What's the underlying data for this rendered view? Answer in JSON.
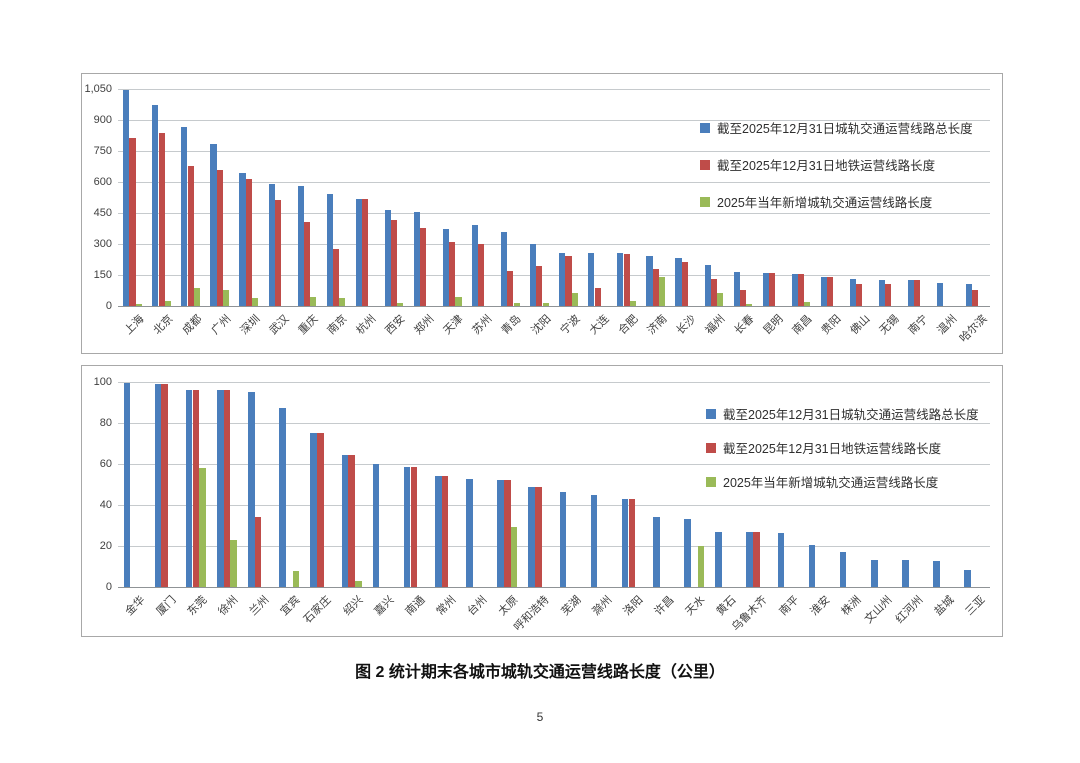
{
  "page": {
    "caption": "图 2 统计期末各城市城轨交通运营线路长度（公里）",
    "page_number": "5"
  },
  "colors": {
    "series_total_blue": "#4A7EBC",
    "series_metro_red": "#BF4C49",
    "series_new_green": "#9ABA58",
    "gridline": "#c6cacd",
    "panel_border": "#a8a8a8"
  },
  "chart_data": [
    {
      "type": "bar",
      "title": "",
      "xlabel": "",
      "ylabel": "",
      "grid": true,
      "legend_position": "inside-right",
      "ylim": [
        0,
        1050
      ],
      "ytick_step": 150,
      "ytick_labels": [
        "0",
        "150",
        "300",
        "450",
        "600",
        "750",
        "900",
        "1,050"
      ],
      "categories": [
        "上海",
        "北京",
        "成都",
        "广州",
        "深圳",
        "武汉",
        "重庆",
        "南京",
        "杭州",
        "西安",
        "郑州",
        "天津",
        "苏州",
        "青岛",
        "沈阳",
        "宁波",
        "大连",
        "合肥",
        "济南",
        "长沙",
        "福州",
        "长春",
        "昆明",
        "南昌",
        "贵阳",
        "佛山",
        "无锡",
        "南宁",
        "温州",
        "哈尔滨"
      ],
      "series": [
        {
          "name": "截至2025年12月31日城轨交通运营线路总长度",
          "color": "#4A7EBC",
          "values": [
            1045,
            975,
            868,
            782,
            642,
            589,
            581,
            540,
            516,
            465,
            455,
            374,
            393,
            358,
            300,
            258,
            255,
            255,
            242,
            234,
            197,
            165,
            160,
            157,
            142,
            131,
            127,
            125,
            110,
            105
          ]
        },
        {
          "name": "截至2025年12月31日地铁运营线路长度",
          "color": "#BF4C49",
          "values": [
            815,
            836,
            677,
            658,
            616,
            513,
            406,
            274,
            516,
            416,
            379,
            311,
            298,
            170,
            195,
            240,
            88,
            253,
            180,
            213,
            132,
            76,
            160,
            157,
            142,
            108,
            105,
            125,
            0,
            80
          ]
        },
        {
          "name": "2025年当年新增城轨交通运营线路长度",
          "color": "#9ABA58",
          "values": [
            11,
            24,
            85,
            76,
            38,
            0,
            45,
            40,
            0,
            16,
            0,
            44,
            0,
            13,
            16,
            62,
            0,
            25,
            140,
            0,
            61,
            8,
            0,
            21,
            0,
            0,
            0,
            0,
            0,
            0
          ]
        }
      ]
    },
    {
      "type": "bar",
      "title": "",
      "xlabel": "",
      "ylabel": "",
      "grid": true,
      "legend_position": "inside-right",
      "ylim": [
        0,
        100
      ],
      "ytick_step": 20,
      "ytick_labels": [
        "0",
        "20",
        "40",
        "60",
        "80",
        "100"
      ],
      "categories": [
        "金华",
        "厦门",
        "东莞",
        "徐州",
        "兰州",
        "宜宾",
        "石家庄",
        "绍兴",
        "嘉兴",
        "南通",
        "常州",
        "台州",
        "太原",
        "呼和浩特",
        "芜湖",
        "滁州",
        "洛阳",
        "许昌",
        "天水",
        "黄石",
        "乌鲁木齐",
        "南平",
        "淮安",
        "株洲",
        "文山州",
        "红河州",
        "盐城",
        "三亚"
      ],
      "series": [
        {
          "name": "截至2025年12月31日城轨交通运营线路总长度",
          "color": "#4A7EBC",
          "values": [
            99.7,
            99.0,
            95.9,
            95.9,
            95.3,
            87.2,
            75.0,
            64.3,
            60.2,
            58.5,
            54.0,
            52.6,
            52.3,
            49.0,
            46.5,
            44.9,
            42.8,
            34.3,
            33.0,
            27.0,
            26.8,
            26.2,
            20.5,
            17.0,
            13.4,
            13.4,
            12.7,
            8.4
          ]
        },
        {
          "name": "截至2025年12月31日地铁运营线路长度",
          "color": "#BF4C49",
          "values": [
            0,
            99.0,
            95.9,
            95.9,
            34.1,
            0,
            75.0,
            64.3,
            0,
            58.5,
            54.0,
            0,
            52.3,
            49.0,
            0,
            0,
            42.8,
            0,
            0,
            0,
            26.8,
            0,
            0,
            0,
            0,
            0,
            0,
            0
          ]
        },
        {
          "name": "2025年当年新增城轨交通运营线路长度",
          "color": "#9ABA58",
          "values": [
            0,
            0,
            57.9,
            22.9,
            0,
            7.8,
            0,
            3.0,
            0,
            0,
            0,
            0,
            29.3,
            0,
            0,
            0,
            0,
            0,
            20.0,
            0,
            0,
            0,
            0,
            0,
            0,
            0,
            0,
            0
          ]
        }
      ]
    }
  ]
}
